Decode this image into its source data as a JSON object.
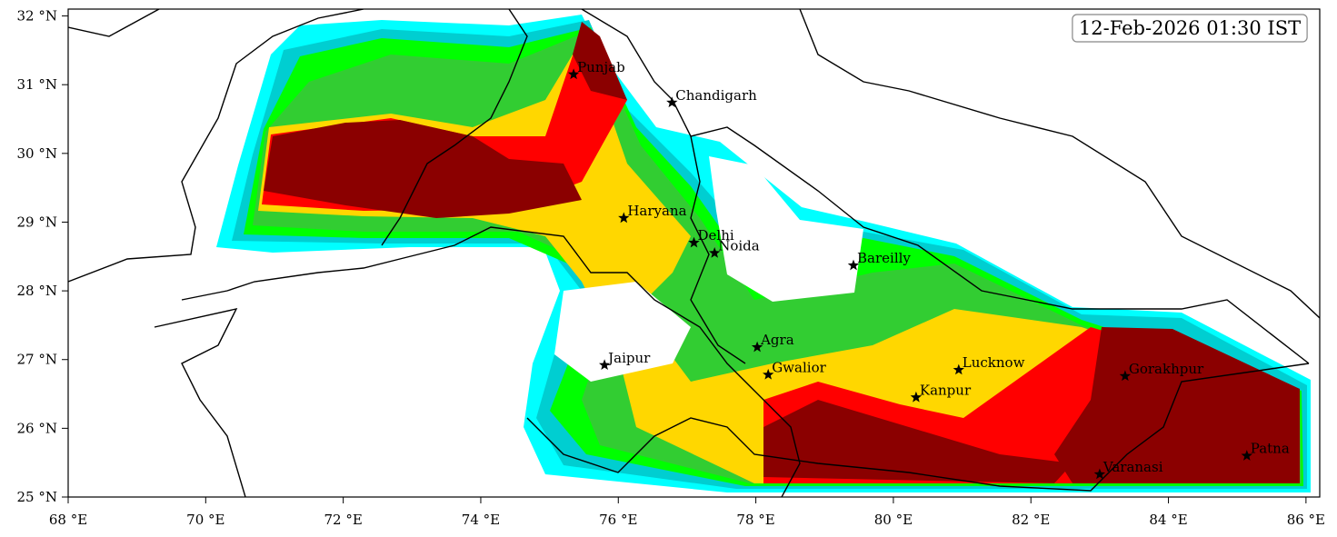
{
  "map_data": {
    "title": "12-Feb-2026 01:30 IST",
    "xlim": [
      68,
      86.2
    ],
    "ylim": [
      25,
      32.1
    ],
    "xticks": [
      {
        "value": 68,
        "label": "68 °E"
      },
      {
        "value": 70,
        "label": "70 °E"
      },
      {
        "value": 72,
        "label": "72 °E"
      },
      {
        "value": 74,
        "label": "74 °E"
      },
      {
        "value": 76,
        "label": "76 °E"
      },
      {
        "value": 78,
        "label": "78 °E"
      },
      {
        "value": 80,
        "label": "80 °E"
      },
      {
        "value": 82,
        "label": "82 °E"
      },
      {
        "value": 84,
        "label": "84 °E"
      },
      {
        "value": 86,
        "label": "86 °E"
      }
    ],
    "yticks": [
      {
        "value": 25,
        "label": "25 °N"
      },
      {
        "value": 26,
        "label": "26 °N"
      },
      {
        "value": 27,
        "label": "27 °N"
      },
      {
        "value": 28,
        "label": "28 °N"
      },
      {
        "value": 29,
        "label": "29 °N"
      },
      {
        "value": 30,
        "label": "30 °N"
      },
      {
        "value": 31,
        "label": "31 °N"
      },
      {
        "value": 32,
        "label": "32 °N"
      }
    ],
    "cities": [
      {
        "name": "Punjab",
        "lon": 75.35,
        "lat": 31.15
      },
      {
        "name": "Chandigarh",
        "lon": 76.78,
        "lat": 30.74
      },
      {
        "name": "Haryana",
        "lon": 76.08,
        "lat": 29.06
      },
      {
        "name": "Delhi",
        "lon": 77.1,
        "lat": 28.7
      },
      {
        "name": "Noida",
        "lon": 77.4,
        "lat": 28.55
      },
      {
        "name": "Bareilly",
        "lon": 79.42,
        "lat": 28.37
      },
      {
        "name": "Agra",
        "lon": 78.02,
        "lat": 27.18
      },
      {
        "name": "Jaipur",
        "lon": 75.8,
        "lat": 26.92
      },
      {
        "name": "Gwalior",
        "lon": 78.18,
        "lat": 26.78
      },
      {
        "name": "Lucknow",
        "lon": 80.95,
        "lat": 26.85
      },
      {
        "name": "Kanpur",
        "lon": 80.33,
        "lat": 26.45
      },
      {
        "name": "Gorakhpur",
        "lon": 83.37,
        "lat": 26.76
      },
      {
        "name": "Varanasi",
        "lon": 83.0,
        "lat": 25.33
      },
      {
        "name": "Patna",
        "lon": 85.14,
        "lat": 25.6
      }
    ]
  }
}
